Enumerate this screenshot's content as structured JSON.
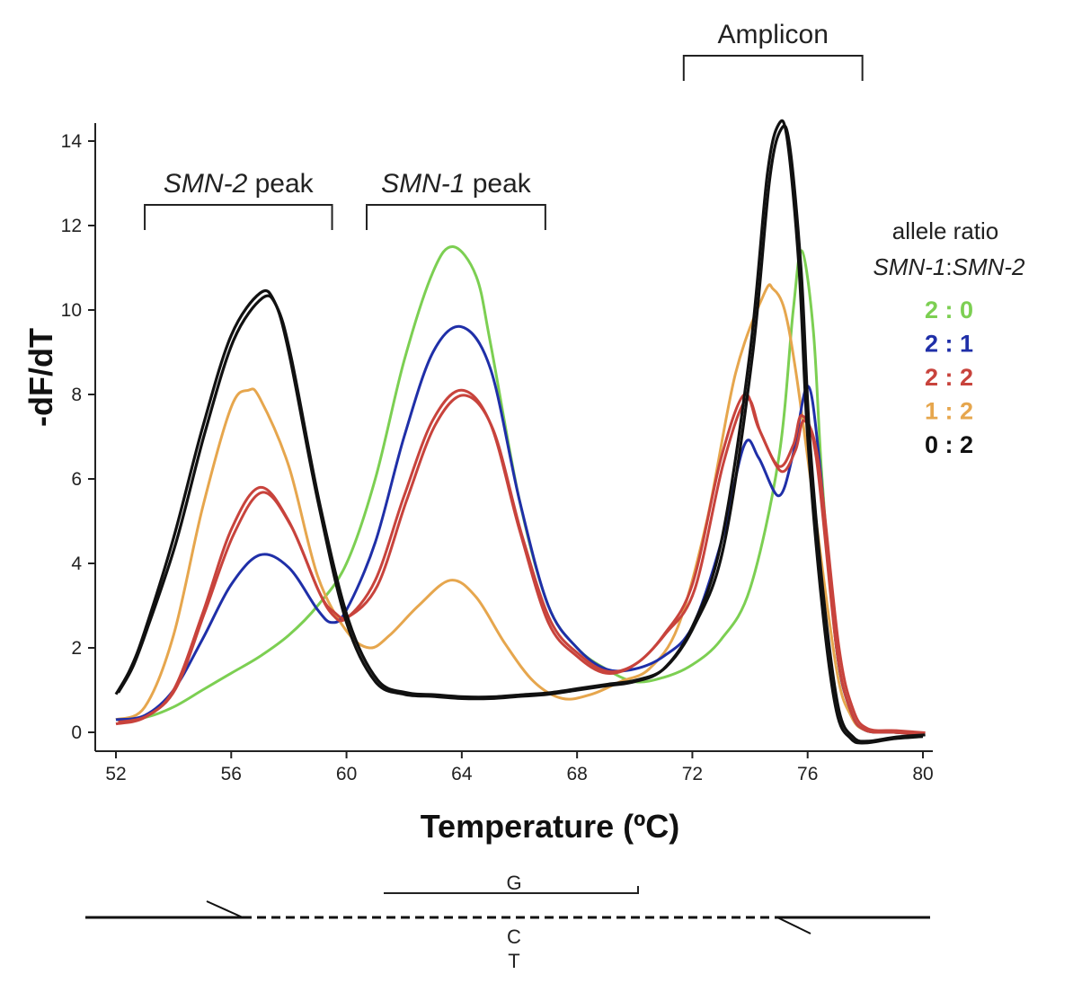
{
  "chart_data": {
    "type": "line",
    "title": "",
    "xlabel": "Temperature (ºC)",
    "ylabel": "-dF/dT",
    "xlim": [
      52,
      80
    ],
    "ylim": [
      -0.4,
      14.5
    ],
    "xticks": [
      "52",
      "56",
      "60",
      "64",
      "68",
      "72",
      "76",
      "80"
    ],
    "yticks": [
      "0",
      "2",
      "4",
      "6",
      "8",
      "10",
      "12",
      "14"
    ],
    "grid": false,
    "annotations": [
      {
        "label_italic": "SMN-2",
        "label_rest": " peak",
        "x_start": 53.0,
        "x_end": 59.5
      },
      {
        "label_italic": "SMN-1",
        "label_rest": " peak",
        "x_start": 60.7,
        "x_end": 66.9
      },
      {
        "label_italic": "",
        "label_rest": "Amplicon",
        "x_start": 71.7,
        "x_end": 77.9
      }
    ],
    "legend": {
      "title": "allele ratio",
      "subtitle_a": "SMN-1",
      "subtitle_sep": ":",
      "subtitle_b": "SMN-2",
      "position": "right"
    },
    "series": [
      {
        "name": "2 : 0",
        "color": "#7ccf52",
        "replicates": 1,
        "points": [
          [
            52,
            0.3
          ],
          [
            53,
            0.35
          ],
          [
            54,
            0.6
          ],
          [
            55,
            1.0
          ],
          [
            56,
            1.4
          ],
          [
            57,
            1.8
          ],
          [
            58,
            2.3
          ],
          [
            59,
            3.0
          ],
          [
            60,
            4.0
          ],
          [
            61,
            6.0
          ],
          [
            62,
            8.8
          ],
          [
            63,
            10.9
          ],
          [
            63.7,
            11.5
          ],
          [
            64.5,
            10.8
          ],
          [
            65,
            9.2
          ],
          [
            66,
            5.5
          ],
          [
            67,
            3.0
          ],
          [
            68,
            2.0
          ],
          [
            69,
            1.5
          ],
          [
            70,
            1.2
          ],
          [
            71,
            1.3
          ],
          [
            72,
            1.6
          ],
          [
            73,
            2.2
          ],
          [
            74,
            3.4
          ],
          [
            75,
            6.5
          ],
          [
            75.5,
            10.0
          ],
          [
            75.8,
            11.4
          ],
          [
            76.2,
            9.5
          ],
          [
            76.5,
            6.0
          ],
          [
            77,
            2.0
          ],
          [
            77.5,
            0.5
          ],
          [
            78,
            0.05
          ],
          [
            79,
            0.0
          ],
          [
            80,
            -0.05
          ]
        ]
      },
      {
        "name": "2 : 1",
        "color": "#1f2fa8",
        "replicates": 1,
        "points": [
          [
            52,
            0.3
          ],
          [
            53,
            0.4
          ],
          [
            54,
            1.0
          ],
          [
            55,
            2.2
          ],
          [
            56,
            3.5
          ],
          [
            57,
            4.2
          ],
          [
            58,
            3.9
          ],
          [
            59,
            2.9
          ],
          [
            59.5,
            2.6
          ],
          [
            60,
            2.9
          ],
          [
            61,
            4.5
          ],
          [
            62,
            7.0
          ],
          [
            63,
            9.0
          ],
          [
            64,
            9.6
          ],
          [
            65,
            8.6
          ],
          [
            66,
            5.5
          ],
          [
            67,
            3.0
          ],
          [
            68,
            2.0
          ],
          [
            69,
            1.5
          ],
          [
            70,
            1.5
          ],
          [
            71,
            1.8
          ],
          [
            72,
            2.5
          ],
          [
            73,
            4.5
          ],
          [
            73.8,
            6.8
          ],
          [
            74.3,
            6.5
          ],
          [
            75,
            5.6
          ],
          [
            75.5,
            6.6
          ],
          [
            76,
            8.2
          ],
          [
            76.4,
            6.5
          ],
          [
            77,
            2.0
          ],
          [
            77.5,
            0.5
          ],
          [
            78,
            0.05
          ],
          [
            79,
            0.0
          ],
          [
            80,
            -0.05
          ]
        ]
      },
      {
        "name": "2 : 2",
        "color": "#c8433c",
        "replicates": 2,
        "points": [
          [
            52,
            0.2
          ],
          [
            53,
            0.35
          ],
          [
            54,
            1.0
          ],
          [
            55,
            2.8
          ],
          [
            56,
            4.8
          ],
          [
            57,
            5.8
          ],
          [
            58,
            5.0
          ],
          [
            59,
            3.4
          ],
          [
            59.5,
            2.8
          ],
          [
            60,
            2.7
          ],
          [
            61,
            3.6
          ],
          [
            62,
            5.6
          ],
          [
            63,
            7.4
          ],
          [
            64,
            8.1
          ],
          [
            65,
            7.3
          ],
          [
            66,
            4.8
          ],
          [
            67,
            2.6
          ],
          [
            68,
            1.8
          ],
          [
            69,
            1.4
          ],
          [
            70,
            1.6
          ],
          [
            71,
            2.3
          ],
          [
            72,
            3.5
          ],
          [
            73,
            6.5
          ],
          [
            73.8,
            8.0
          ],
          [
            74.3,
            7.2
          ],
          [
            75,
            6.3
          ],
          [
            75.5,
            6.8
          ],
          [
            75.8,
            7.5
          ],
          [
            76.3,
            6.5
          ],
          [
            77,
            2.0
          ],
          [
            77.5,
            0.5
          ],
          [
            78,
            0.05
          ],
          [
            79,
            0.0
          ],
          [
            80,
            -0.05
          ]
        ]
      },
      {
        "name": "1 : 2",
        "color": "#e6a64d",
        "replicates": 1,
        "points": [
          [
            52,
            0.3
          ],
          [
            53,
            0.6
          ],
          [
            54,
            2.3
          ],
          [
            55,
            5.3
          ],
          [
            56,
            7.7
          ],
          [
            56.6,
            8.1
          ],
          [
            57,
            7.9
          ],
          [
            58,
            6.3
          ],
          [
            59,
            3.7
          ],
          [
            60,
            2.4
          ],
          [
            60.8,
            2.0
          ],
          [
            61.5,
            2.3
          ],
          [
            62.5,
            3.0
          ],
          [
            63.6,
            3.6
          ],
          [
            64.5,
            3.2
          ],
          [
            65.5,
            2.1
          ],
          [
            66.5,
            1.2
          ],
          [
            67.5,
            0.8
          ],
          [
            68.5,
            0.9
          ],
          [
            69.5,
            1.2
          ],
          [
            70.5,
            1.5
          ],
          [
            71.5,
            2.5
          ],
          [
            72.5,
            5.0
          ],
          [
            73.5,
            8.5
          ],
          [
            74.5,
            10.4
          ],
          [
            74.8,
            10.5
          ],
          [
            75.2,
            10.0
          ],
          [
            75.6,
            8.5
          ],
          [
            76.2,
            5.5
          ],
          [
            77,
            1.5
          ],
          [
            77.5,
            0.4
          ],
          [
            78,
            0.05
          ],
          [
            79,
            0.0
          ],
          [
            80,
            -0.05
          ]
        ]
      },
      {
        "name": "0 : 2",
        "color": "#111111",
        "replicates": 2,
        "points": [
          [
            52,
            0.9
          ],
          [
            52.5,
            1.5
          ],
          [
            53,
            2.4
          ],
          [
            54,
            4.6
          ],
          [
            55,
            7.2
          ],
          [
            56,
            9.4
          ],
          [
            57,
            10.4
          ],
          [
            57.5,
            10.2
          ],
          [
            58,
            9.0
          ],
          [
            59,
            5.5
          ],
          [
            60,
            2.6
          ],
          [
            61,
            1.2
          ],
          [
            62,
            0.9
          ],
          [
            63,
            0.85
          ],
          [
            64,
            0.8
          ],
          [
            65,
            0.8
          ],
          [
            66,
            0.85
          ],
          [
            67,
            0.9
          ],
          [
            68,
            1.0
          ],
          [
            69,
            1.1
          ],
          [
            70,
            1.2
          ],
          [
            71,
            1.5
          ],
          [
            72,
            2.5
          ],
          [
            73,
            4.5
          ],
          [
            74,
            9.0
          ],
          [
            74.6,
            13.2
          ],
          [
            75,
            14.4
          ],
          [
            75.3,
            14.0
          ],
          [
            75.7,
            11.0
          ],
          [
            76,
            7.0
          ],
          [
            76.5,
            3.0
          ],
          [
            77,
            0.5
          ],
          [
            77.5,
            -0.15
          ],
          [
            78,
            -0.25
          ],
          [
            79,
            -0.15
          ],
          [
            80,
            -0.1
          ]
        ]
      }
    ],
    "schematic": {
      "upper_label": "G",
      "lower_label_1": "C",
      "lower_label_2": "T"
    }
  }
}
